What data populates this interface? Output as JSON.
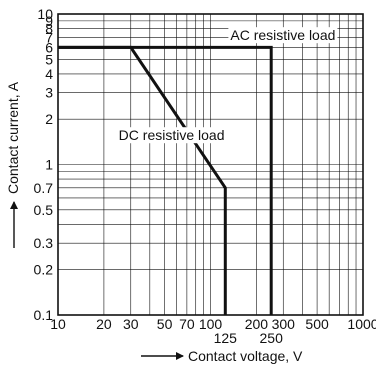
{
  "chart_data": {
    "type": "line",
    "title": "",
    "xlabel": "Contact voltage, V",
    "ylabel": "Contact current, A",
    "xscale": "log",
    "yscale": "log",
    "xlim": [
      10,
      1000
    ],
    "ylim": [
      0.1,
      10
    ],
    "grid": true,
    "x_ticks": [
      {
        "value": 10,
        "label": "10",
        "row": 1
      },
      {
        "value": 20,
        "label": "20",
        "row": 1
      },
      {
        "value": 30,
        "label": "30",
        "row": 1
      },
      {
        "value": 50,
        "label": "50",
        "row": 1
      },
      {
        "value": 70,
        "label": "70",
        "row": 1
      },
      {
        "value": 100,
        "label": "100",
        "row": 1
      },
      {
        "value": 125,
        "label": "125",
        "row": 2
      },
      {
        "value": 200,
        "label": "200",
        "row": 1
      },
      {
        "value": 250,
        "label": "250",
        "row": 2
      },
      {
        "value": 300,
        "label": "300",
        "row": 1
      },
      {
        "value": 500,
        "label": "500",
        "row": 1
      },
      {
        "value": 1000,
        "label": "1000",
        "row": 1
      }
    ],
    "y_ticks": [
      {
        "value": 10,
        "label": "10"
      },
      {
        "value": 9,
        "label": "9"
      },
      {
        "value": 8,
        "label": "8"
      },
      {
        "value": 7,
        "label": "7"
      },
      {
        "value": 6,
        "label": "6"
      },
      {
        "value": 5,
        "label": "5"
      },
      {
        "value": 4,
        "label": "4"
      },
      {
        "value": 3,
        "label": "3"
      },
      {
        "value": 2,
        "label": "2"
      },
      {
        "value": 1,
        "label": "1"
      },
      {
        "value": 0.7,
        "label": "0.7"
      },
      {
        "value": 0.5,
        "label": "0.5"
      },
      {
        "value": 0.3,
        "label": "0.3"
      },
      {
        "value": 0.2,
        "label": "0.2"
      },
      {
        "value": 0.1,
        "label": "0.1"
      }
    ],
    "series": [
      {
        "name": "AC resistive load",
        "x": [
          10,
          250,
          250
        ],
        "y": [
          6,
          6,
          0.1
        ]
      },
      {
        "name": "DC resistive load",
        "x": [
          10,
          30,
          125,
          125
        ],
        "y": [
          6,
          6,
          0.7,
          0.1
        ]
      }
    ],
    "annotations": [
      {
        "text": "AC resistive load",
        "x": 135,
        "y": 6.7
      },
      {
        "text": "DC resistive load",
        "x": 25,
        "y": 1.45
      }
    ]
  }
}
